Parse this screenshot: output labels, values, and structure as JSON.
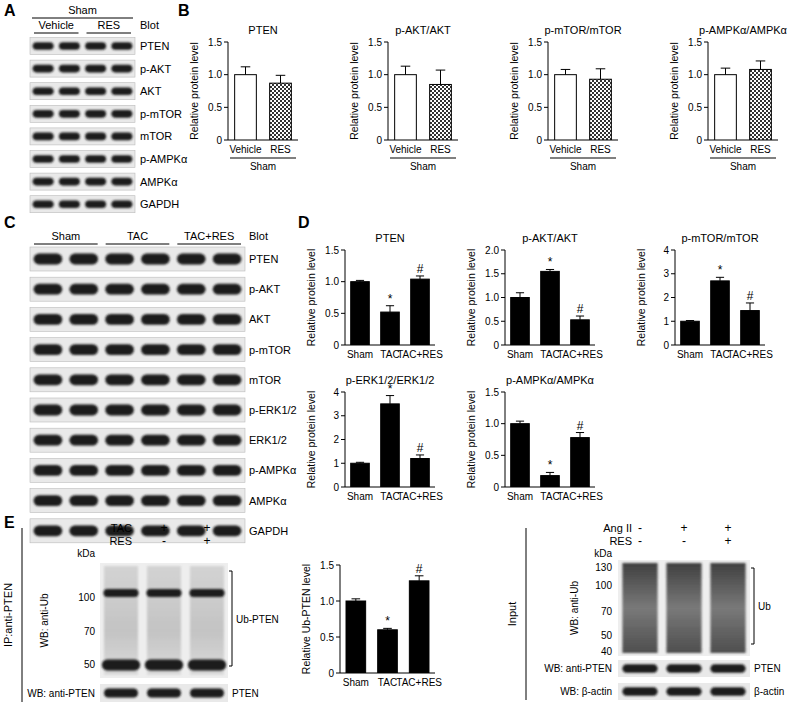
{
  "panel_labels": [
    "A",
    "B",
    "C",
    "D",
    "E"
  ],
  "chart_data": [
    {
      "type": "bar",
      "title": "PTEN",
      "y_label": "Relative protein level",
      "categories": [
        "Vehicle",
        "RES"
      ],
      "group_label": "Sham",
      "values": [
        1.0,
        0.87
      ],
      "errors": [
        0.12,
        0.12
      ],
      "colors": [
        "#ffffff",
        "#333333"
      ],
      "ylim": [
        0,
        1.5
      ],
      "yticks": [
        0,
        0.5,
        {
          "value": 1,
          "label": "1.0"
        },
        1.5
      ]
    },
    {
      "type": "bar",
      "title": "p-AKT/AKT",
      "y_label": "Relative protein level",
      "categories": [
        "Vehicle",
        "RES"
      ],
      "group_label": "Sham",
      "values": [
        1.0,
        0.85
      ],
      "errors": [
        0.13,
        0.22
      ],
      "colors": [
        "#ffffff",
        "#333333"
      ],
      "ylim": [
        0,
        1.5
      ],
      "yticks": [
        0,
        0.5,
        {
          "value": 1,
          "label": "1.0"
        },
        1.5
      ]
    },
    {
      "type": "bar",
      "title": "p-mTOR/mTOR",
      "y_label": "Relative protein level",
      "categories": [
        "Vehicle",
        "RES"
      ],
      "group_label": "Sham",
      "values": [
        1.0,
        0.93
      ],
      "errors": [
        0.08,
        0.16
      ],
      "colors": [
        "#ffffff",
        "#333333"
      ],
      "ylim": [
        0,
        1.5
      ],
      "yticks": [
        0,
        0.5,
        {
          "value": 1,
          "label": "1.0"
        },
        1.5
      ]
    },
    {
      "type": "bar",
      "title": "p-AMPKα/AMPKα",
      "y_label": "Relative protein level",
      "categories": [
        "Vehicle",
        "RES"
      ],
      "group_label": "Sham",
      "values": [
        1.0,
        1.08
      ],
      "errors": [
        0.1,
        0.13
      ],
      "colors": [
        "#ffffff",
        "#333333"
      ],
      "ylim": [
        0,
        1.5
      ],
      "yticks": [
        0,
        0.5,
        {
          "value": 1,
          "label": "1.0"
        },
        1.5
      ]
    },
    {
      "type": "bar",
      "title": "PTEN",
      "y_label": "Relative protein level",
      "categories": [
        "Sham",
        "TAC",
        "TAC+RES"
      ],
      "values": [
        1.0,
        0.52,
        1.04
      ],
      "errors": [
        0.02,
        0.1,
        0.05
      ],
      "annotations": [
        null,
        "*",
        "#"
      ],
      "colors": [
        "#000000",
        "#000000",
        "#000000"
      ],
      "ylim": [
        0,
        1.5
      ],
      "yticks": [
        0,
        0.5,
        {
          "value": 1,
          "label": "1.0"
        },
        1.5
      ]
    },
    {
      "type": "bar",
      "title": "p-AKT/AKT",
      "y_label": "Relative protein level",
      "categories": [
        "Sham",
        "TAC",
        "TAC+RES"
      ],
      "values": [
        1.0,
        1.55,
        0.53
      ],
      "errors": [
        0.1,
        0.04,
        0.08
      ],
      "annotations": [
        null,
        "*",
        "#"
      ],
      "colors": [
        "#000000",
        "#000000",
        "#000000"
      ],
      "ylim": [
        0,
        2
      ],
      "yticks": [
        0,
        0.5,
        {
          "value": 1,
          "label": "1.0"
        },
        1.5,
        {
          "value": 2,
          "label": "2.0"
        }
      ]
    },
    {
      "type": "bar",
      "title": "p-mTOR/mTOR",
      "y_label": "Relative protein level",
      "categories": [
        "Sham",
        "TAC",
        "TAC+RES"
      ],
      "values": [
        1.0,
        2.7,
        1.45
      ],
      "errors": [
        0.03,
        0.15,
        0.32
      ],
      "annotations": [
        null,
        "*",
        "#"
      ],
      "colors": [
        "#000000",
        "#000000",
        "#000000"
      ],
      "ylim": [
        0,
        4
      ],
      "yticks": [
        0,
        1,
        2,
        3,
        4
      ]
    },
    {
      "type": "bar",
      "title": "p-ERK1/2/ERK1/2",
      "y_label": "Relative protein level",
      "categories": [
        "Sham",
        "TAC",
        "TAC+RES"
      ],
      "values": [
        1.0,
        3.5,
        1.2
      ],
      "errors": [
        0.04,
        0.35,
        0.15
      ],
      "annotations": [
        null,
        "*",
        "#"
      ],
      "colors": [
        "#000000",
        "#000000",
        "#000000"
      ],
      "ylim": [
        0,
        4
      ],
      "yticks": [
        0,
        1,
        2,
        3,
        4
      ]
    },
    {
      "type": "bar",
      "title": "p-AMPKα/AMPKα",
      "y_label": "Relative protein level",
      "categories": [
        "Sham",
        "TAC",
        "TAC+RES"
      ],
      "values": [
        1.0,
        0.18,
        0.78
      ],
      "errors": [
        0.04,
        0.05,
        0.08
      ],
      "annotations": [
        null,
        "*",
        "#"
      ],
      "colors": [
        "#000000",
        "#000000",
        "#000000"
      ],
      "ylim": [
        0,
        1.5
      ],
      "yticks": [
        0,
        0.5,
        {
          "value": 1,
          "label": "1.0"
        },
        1.5
      ]
    },
    {
      "type": "bar",
      "y_label": "Relative Ub-PTEN level",
      "categories": [
        "Sham",
        "TAC",
        "TAC+RES"
      ],
      "values": [
        1.0,
        0.6,
        1.28
      ],
      "errors": [
        0.03,
        0.02,
        0.07
      ],
      "annotations": [
        null,
        "*",
        "#"
      ],
      "colors": [
        "#000000",
        "#000000",
        "#000000"
      ],
      "ylim": [
        0,
        1.5
      ],
      "yticks": [
        0,
        0.5,
        {
          "value": 1,
          "label": "1.0"
        },
        1.5
      ]
    }
  ],
  "blots": [
    {
      "header": "Sham",
      "groups": [
        "Vehicle",
        "RES"
      ],
      "blot_label": "Blot",
      "rows": [
        "PTEN",
        "p-AKT",
        "AKT",
        "p-mTOR",
        "mTOR",
        "p-AMPKα",
        "AMPKα",
        "GAPDH"
      ]
    },
    {
      "groups": [
        "Sham",
        "TAC",
        "TAC+RES"
      ],
      "blot_label": "Blot",
      "rows": [
        "PTEN",
        "p-AKT",
        "AKT",
        "p-mTOR",
        "mTOR",
        "p-ERK1/2",
        "ERK1/2",
        "p-AMPKα",
        "AMPKα",
        "GAPDH"
      ]
    },
    {
      "side_label": "IP:anti-PTEN",
      "conditions": [
        {
          "name": "TAC",
          "marks": [
            "-",
            "+",
            "+"
          ]
        },
        {
          "name": "RES",
          "marks": [
            "-",
            "-",
            "+"
          ]
        }
      ],
      "kda": "kDa",
      "markers": [
        100,
        70,
        50
      ],
      "bracket": "Ub-PTEN",
      "wb": [
        {
          "label": "WB: anti-Ub"
        },
        {
          "label": "WB: anti-PTEN",
          "band": "PTEN"
        }
      ]
    },
    {
      "side_label": "Input",
      "conditions": [
        {
          "name": "Ang II",
          "marks": [
            "-",
            "+",
            "+"
          ]
        },
        {
          "name": "RES",
          "marks": [
            "-",
            "-",
            "+"
          ]
        }
      ],
      "kda": "kDa",
      "markers": [
        130,
        100,
        70,
        50,
        40
      ],
      "bracket": "Ub",
      "wb": [
        {
          "label": "WB: anti-Ub"
        },
        {
          "label": "WB: anti-PTEN",
          "band": "PTEN"
        },
        {
          "label": "WB: β-actin",
          "band": "β-actin"
        }
      ]
    }
  ]
}
